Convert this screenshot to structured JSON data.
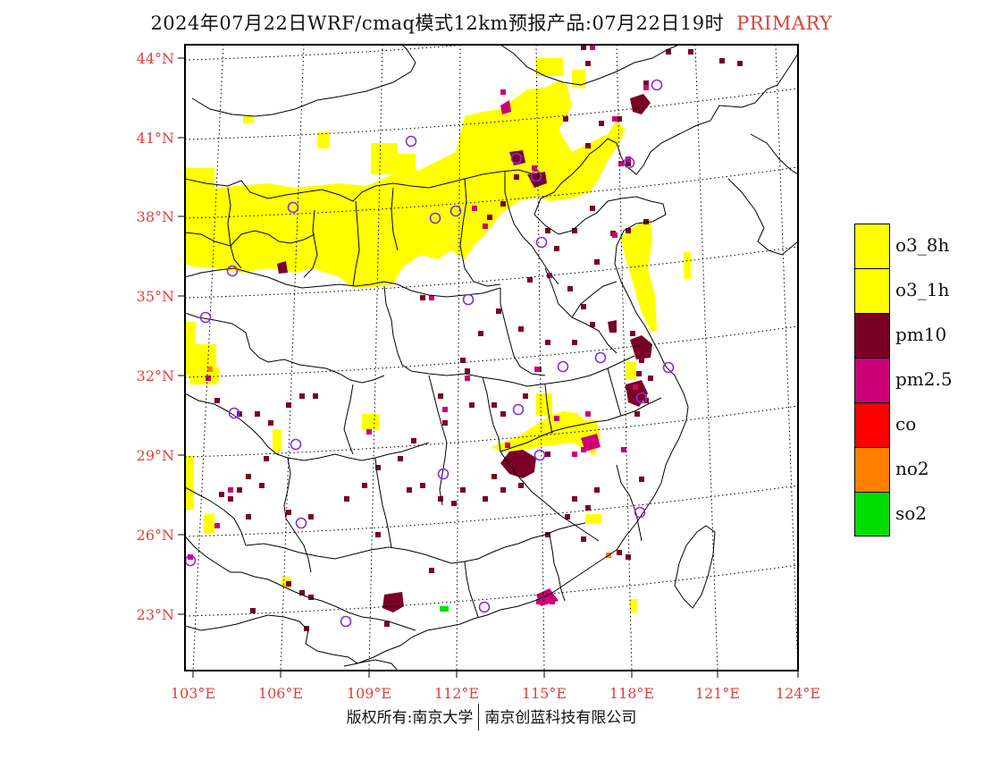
{
  "header": {
    "title": "2024年07月22日WRF/cmaq模式12km预报产品:07月22日19时",
    "mode": "PRIMARY"
  },
  "map": {
    "lat_labels": [
      "44°N",
      "41°N",
      "38°N",
      "35°N",
      "32°N",
      "29°N",
      "26°N",
      "23°N"
    ],
    "lon_labels": [
      "103°E",
      "106°E",
      "109°E",
      "112°E",
      "115°E",
      "118°E",
      "121°E",
      "124°E"
    ],
    "lat_values": [
      44,
      41,
      38,
      35,
      32,
      29,
      26,
      23
    ],
    "lon_values": [
      103,
      106,
      109,
      112,
      115,
      118,
      121,
      124
    ],
    "label_color": "#e0403a",
    "station_color": "#8a2be2"
  },
  "legend": {
    "items": [
      {
        "label": "o3_8h",
        "color": "#ffff00"
      },
      {
        "label": "o3_1h",
        "color": "#ffff00"
      },
      {
        "label": "pm10",
        "color": "#7a0026"
      },
      {
        "label": "pm2.5",
        "color": "#cc0077"
      },
      {
        "label": "co",
        "color": "#ff0000"
      },
      {
        "label": "no2",
        "color": "#ff7f00"
      },
      {
        "label": "so2",
        "color": "#00dd00"
      }
    ]
  },
  "footer": {
    "left": "版权所有:南京大学",
    "right": "南京创蓝科技有限公司"
  }
}
